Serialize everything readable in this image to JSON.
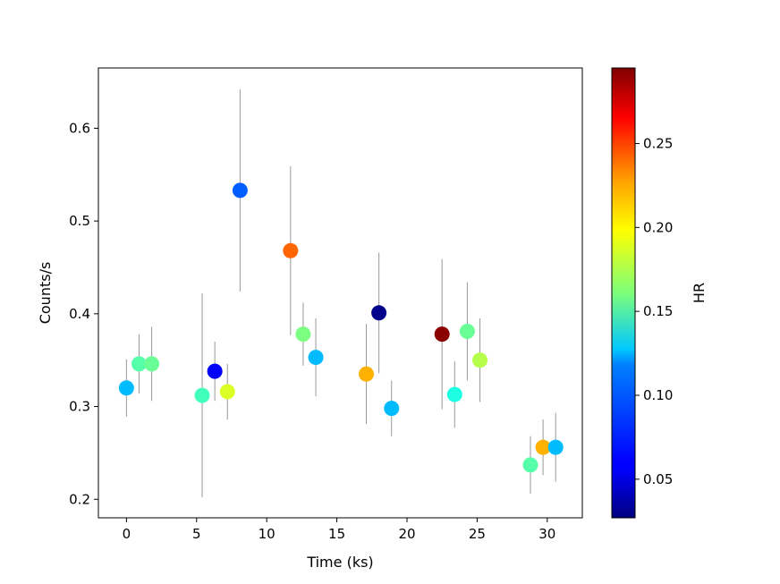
{
  "chart_data": {
    "type": "scatter",
    "xlabel": "Time (ks)",
    "ylabel": "Counts/s",
    "colorbar_label": "HR",
    "xlim": [
      -2,
      32.5
    ],
    "ylim": [
      0.18,
      0.665
    ],
    "xticks": [
      0,
      5,
      10,
      15,
      20,
      25,
      30
    ],
    "yticks": [
      0.2,
      0.3,
      0.4,
      0.5,
      0.6
    ],
    "xtick_labels": [
      "0",
      "5",
      "10",
      "15",
      "20",
      "25",
      "30"
    ],
    "ytick_labels": [
      "0.2",
      "0.3",
      "0.4",
      "0.5",
      "0.6"
    ],
    "colorbar": {
      "colormap": "jet",
      "range": [
        0.027,
        0.295
      ],
      "ticks": [
        0.05,
        0.1,
        0.15,
        0.2,
        0.25
      ],
      "tick_labels": [
        "0.05",
        "0.10",
        "0.15",
        "0.20",
        "0.25"
      ]
    },
    "grid": false,
    "error_bar_color": "#999999",
    "points": [
      {
        "x": 0.0,
        "y": 0.32,
        "err": 0.031,
        "hr": 0.11
      },
      {
        "x": 0.9,
        "y": 0.346,
        "err": 0.032,
        "hr": 0.15
      },
      {
        "x": 1.8,
        "y": 0.346,
        "err": 0.04,
        "hr": 0.155
      },
      {
        "x": 5.4,
        "y": 0.312,
        "err": 0.11,
        "hr": 0.145
      },
      {
        "x": 6.3,
        "y": 0.338,
        "err": 0.032,
        "hr": 0.06
      },
      {
        "x": 7.2,
        "y": 0.316,
        "err": 0.03,
        "hr": 0.185
      },
      {
        "x": 8.1,
        "y": 0.533,
        "err": 0.109,
        "hr": 0.085
      },
      {
        "x": 11.7,
        "y": 0.468,
        "err": 0.091,
        "hr": 0.235
      },
      {
        "x": 12.6,
        "y": 0.378,
        "err": 0.034,
        "hr": 0.16
      },
      {
        "x": 13.5,
        "y": 0.353,
        "err": 0.042,
        "hr": 0.11
      },
      {
        "x": 17.1,
        "y": 0.335,
        "err": 0.054,
        "hr": 0.215
      },
      {
        "x": 18.0,
        "y": 0.401,
        "err": 0.065,
        "hr": 0.03
      },
      {
        "x": 18.9,
        "y": 0.298,
        "err": 0.03,
        "hr": 0.11
      },
      {
        "x": 22.5,
        "y": 0.378,
        "err": 0.081,
        "hr": 0.292
      },
      {
        "x": 23.4,
        "y": 0.313,
        "err": 0.036,
        "hr": 0.135
      },
      {
        "x": 24.3,
        "y": 0.381,
        "err": 0.053,
        "hr": 0.155
      },
      {
        "x": 25.2,
        "y": 0.35,
        "err": 0.045,
        "hr": 0.175
      },
      {
        "x": 28.8,
        "y": 0.237,
        "err": 0.031,
        "hr": 0.15
      },
      {
        "x": 29.7,
        "y": 0.256,
        "err": 0.03,
        "hr": 0.215
      },
      {
        "x": 30.6,
        "y": 0.256,
        "err": 0.037,
        "hr": 0.11
      }
    ]
  }
}
